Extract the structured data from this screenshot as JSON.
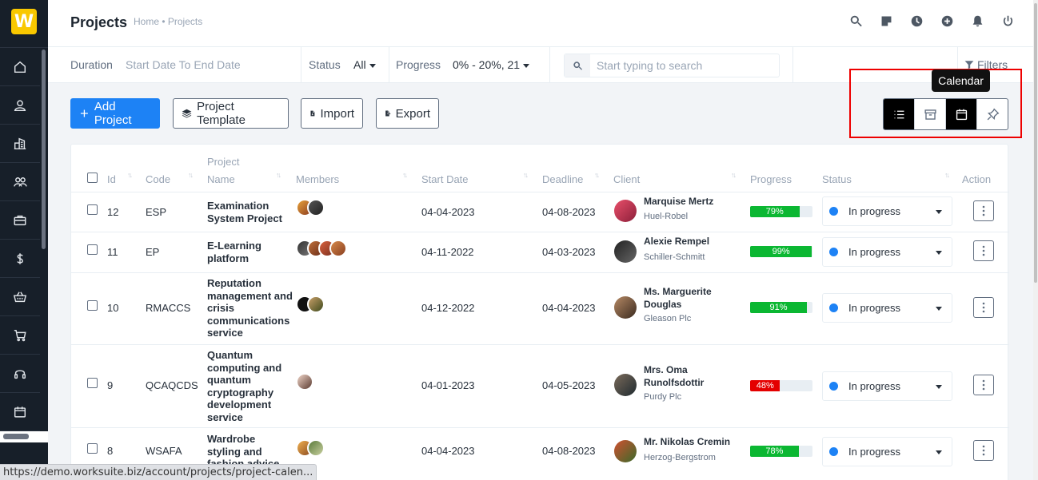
{
  "header": {
    "title": "Projects",
    "breadcrumb": "Home • Projects"
  },
  "icons": {
    "logo_letter": "W",
    "header": [
      "search-icon",
      "sticky-note-icon",
      "clock-icon",
      "plus-circle-icon",
      "bell-icon",
      "power-icon"
    ],
    "sidebar": [
      "home-icon",
      "user-icon",
      "building-icon",
      "users-icon",
      "briefcase-icon",
      "dollar-icon",
      "basket-icon",
      "cart-icon",
      "headset-icon",
      "calendar-icon"
    ]
  },
  "filters": {
    "duration_label": "Duration",
    "duration_placeholder": "Start Date To End Date",
    "status_label": "Status",
    "status_value": "All",
    "progress_label": "Progress",
    "progress_value": "0% - 20%, 21",
    "search_placeholder": "Start typing to search",
    "filters_label": "Filters"
  },
  "toolbar": {
    "add_project": "Add Project",
    "project_template": "Project Template",
    "import": "Import",
    "export": "Export",
    "tooltip": "Calendar"
  },
  "table": {
    "headers": {
      "id": "Id",
      "code": "Code",
      "project_name_1": "Project",
      "project_name_2": "Name",
      "members": "Members",
      "start_date": "Start Date",
      "deadline": "Deadline",
      "client": "Client",
      "progress": "Progress",
      "status": "Status",
      "action": "Action"
    },
    "rows": [
      {
        "id": "12",
        "code": "ESP",
        "name": "Examination System Project",
        "start": "04-04-2023",
        "deadline": "04-08-2023",
        "client_name": "Marquise Mertz",
        "client_company": "Huel-Robel",
        "progress": 79,
        "progress_label": "79%",
        "status": "In progress"
      },
      {
        "id": "11",
        "code": "EP",
        "name": "E-Learning platform",
        "start": "04-11-2022",
        "deadline": "04-03-2023",
        "client_name": "Alexie Rempel",
        "client_company": "Schiller-Schmitt",
        "progress": 99,
        "progress_label": "99%",
        "status": "In progress"
      },
      {
        "id": "10",
        "code": "RMACCS",
        "name": "Reputation management and crisis communications service",
        "start": "04-12-2022",
        "deadline": "04-04-2023",
        "client_name": "Ms. Marguerite Douglas",
        "client_company": "Gleason Plc",
        "progress": 91,
        "progress_label": "91%",
        "status": "In progress"
      },
      {
        "id": "9",
        "code": "QCAQCDS",
        "name": "Quantum computing and quantum cryptography development service",
        "start": "04-01-2023",
        "deadline": "04-05-2023",
        "client_name": "Mrs. Oma Runolfsdottir",
        "client_company": "Purdy Plc",
        "progress": 48,
        "progress_label": "48%",
        "status": "In progress"
      },
      {
        "id": "8",
        "code": "WSAFA",
        "name": "Wardrobe styling and fashion advice",
        "start": "04-04-2023",
        "deadline": "04-08-2023",
        "client_name": "Mr. Nikolas Cremin",
        "client_company": "Herzog-Bergstrom",
        "progress": 78,
        "progress_label": "78%",
        "status": "In progress"
      }
    ]
  },
  "colors": {
    "accent": "#1d82f5",
    "progress_good": "#0bb732",
    "progress_bad": "#e40000",
    "sidebar_bg": "#171f29",
    "logo": "#f9c800"
  },
  "statusbar": {
    "url": "https://demo.worksuite.biz/account/projects/project-calen..."
  }
}
